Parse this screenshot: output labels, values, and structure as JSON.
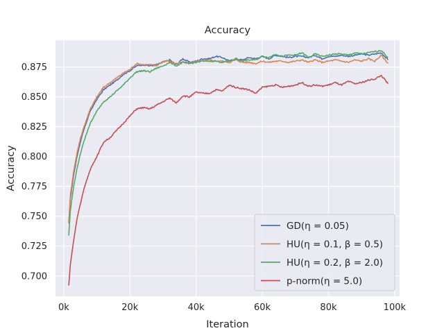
{
  "chart_data": {
    "type": "line",
    "title": "Accuracy",
    "xlabel": "Iteration",
    "ylabel": "Accuracy",
    "xlim": [
      -2500,
      101500
    ],
    "ylim": [
      0.683,
      0.8975
    ],
    "xticks": [
      0,
      20000,
      40000,
      60000,
      80000,
      100000
    ],
    "xtick_labels": [
      "0k",
      "20k",
      "40k",
      "60k",
      "80k",
      "100k"
    ],
    "yticks": [
      0.7,
      0.725,
      0.75,
      0.775,
      0.8,
      0.825,
      0.85,
      0.875
    ],
    "ytick_labels": [
      "0.700",
      "0.725",
      "0.750",
      "0.775",
      "0.800",
      "0.825",
      "0.850",
      "0.875"
    ],
    "grid": true,
    "legend_position": "lower-right",
    "background": "#eaeaf2",
    "series": [
      {
        "name": "GD(η = 0.05)",
        "legend_label": "GD(η = 0.05)",
        "color": "#4c72b0",
        "x": [
          1500,
          2000,
          3000,
          4000,
          5000,
          6000,
          7000,
          8000,
          9000,
          10000,
          12000,
          14000,
          16000,
          18000,
          20000,
          22000,
          24000,
          26000,
          28000,
          30000,
          32000,
          34000,
          36000,
          38000,
          40000,
          42000,
          44000,
          46000,
          48000,
          50000,
          52000,
          54000,
          56000,
          58000,
          60000,
          62000,
          64000,
          66000,
          68000,
          70000,
          72000,
          74000,
          76000,
          78000,
          80000,
          82000,
          84000,
          86000,
          88000,
          90000,
          92000,
          94000,
          96000,
          98000
        ],
        "y": [
          0.744,
          0.765,
          0.785,
          0.8,
          0.812,
          0.822,
          0.83,
          0.838,
          0.843,
          0.848,
          0.856,
          0.86,
          0.864,
          0.869,
          0.872,
          0.876,
          0.877,
          0.876,
          0.877,
          0.879,
          0.881,
          0.877,
          0.882,
          0.879,
          0.88,
          0.882,
          0.882,
          0.884,
          0.883,
          0.88,
          0.882,
          0.881,
          0.883,
          0.882,
          0.884,
          0.882,
          0.885,
          0.884,
          0.883,
          0.884,
          0.884,
          0.883,
          0.885,
          0.882,
          0.884,
          0.884,
          0.885,
          0.884,
          0.885,
          0.886,
          0.885,
          0.886,
          0.887,
          0.881
        ]
      },
      {
        "name": "HU(η = 0.1, β = 0.5)",
        "legend_label": "HU(η = 0.1, β = 0.5)",
        "color": "#dd8452",
        "x": [
          1500,
          2000,
          3000,
          4000,
          5000,
          6000,
          7000,
          8000,
          9000,
          10000,
          12000,
          14000,
          16000,
          18000,
          20000,
          22000,
          24000,
          26000,
          28000,
          30000,
          32000,
          34000,
          36000,
          38000,
          40000,
          42000,
          44000,
          46000,
          48000,
          50000,
          52000,
          54000,
          56000,
          58000,
          60000,
          62000,
          64000,
          66000,
          68000,
          70000,
          72000,
          74000,
          76000,
          78000,
          80000,
          82000,
          84000,
          86000,
          88000,
          90000,
          92000,
          94000,
          96000,
          98000
        ],
        "y": [
          0.745,
          0.768,
          0.788,
          0.803,
          0.815,
          0.824,
          0.832,
          0.84,
          0.845,
          0.85,
          0.858,
          0.862,
          0.866,
          0.87,
          0.873,
          0.878,
          0.877,
          0.877,
          0.876,
          0.88,
          0.88,
          0.878,
          0.879,
          0.878,
          0.88,
          0.88,
          0.881,
          0.88,
          0.88,
          0.879,
          0.881,
          0.879,
          0.879,
          0.878,
          0.88,
          0.879,
          0.88,
          0.88,
          0.879,
          0.88,
          0.881,
          0.879,
          0.881,
          0.879,
          0.88,
          0.881,
          0.88,
          0.879,
          0.881,
          0.88,
          0.882,
          0.88,
          0.885,
          0.878
        ]
      },
      {
        "name": "HU(η = 0.2, β = 2.0)",
        "legend_label": "HU(η = 0.2, β = 2.0)",
        "color": "#55a868",
        "x": [
          1500,
          2000,
          3000,
          4000,
          5000,
          6000,
          7000,
          8000,
          9000,
          10000,
          12000,
          14000,
          16000,
          18000,
          20000,
          22000,
          24000,
          26000,
          28000,
          30000,
          32000,
          34000,
          36000,
          38000,
          40000,
          42000,
          44000,
          46000,
          48000,
          50000,
          52000,
          54000,
          56000,
          58000,
          60000,
          62000,
          64000,
          66000,
          68000,
          70000,
          72000,
          74000,
          76000,
          78000,
          80000,
          82000,
          84000,
          86000,
          88000,
          90000,
          92000,
          94000,
          96000,
          98000
        ],
        "y": [
          0.734,
          0.755,
          0.775,
          0.79,
          0.802,
          0.812,
          0.82,
          0.828,
          0.833,
          0.838,
          0.846,
          0.85,
          0.855,
          0.86,
          0.866,
          0.871,
          0.872,
          0.871,
          0.874,
          0.876,
          0.879,
          0.876,
          0.879,
          0.878,
          0.879,
          0.88,
          0.88,
          0.88,
          0.879,
          0.88,
          0.882,
          0.88,
          0.881,
          0.881,
          0.884,
          0.883,
          0.886,
          0.884,
          0.885,
          0.885,
          0.887,
          0.883,
          0.886,
          0.884,
          0.885,
          0.886,
          0.886,
          0.885,
          0.887,
          0.886,
          0.887,
          0.888,
          0.889,
          0.883
        ]
      },
      {
        "name": "p-norm(η = 5.0)",
        "legend_label": "p-norm(η = 5.0)",
        "color": "#c44e52",
        "x": [
          1500,
          2000,
          3000,
          4000,
          5000,
          6000,
          7000,
          8000,
          9000,
          10000,
          12000,
          14000,
          16000,
          18000,
          20000,
          22000,
          24000,
          26000,
          28000,
          30000,
          32000,
          34000,
          36000,
          38000,
          40000,
          42000,
          44000,
          46000,
          48000,
          50000,
          52000,
          54000,
          56000,
          58000,
          60000,
          62000,
          64000,
          66000,
          68000,
          70000,
          72000,
          74000,
          76000,
          78000,
          80000,
          82000,
          84000,
          86000,
          88000,
          90000,
          92000,
          94000,
          96000,
          98000
        ],
        "y": [
          0.692,
          0.71,
          0.73,
          0.748,
          0.76,
          0.772,
          0.781,
          0.789,
          0.795,
          0.8,
          0.812,
          0.816,
          0.822,
          0.828,
          0.834,
          0.84,
          0.841,
          0.84,
          0.843,
          0.846,
          0.849,
          0.845,
          0.851,
          0.85,
          0.854,
          0.853,
          0.853,
          0.856,
          0.855,
          0.86,
          0.858,
          0.857,
          0.856,
          0.853,
          0.858,
          0.859,
          0.86,
          0.858,
          0.859,
          0.86,
          0.862,
          0.859,
          0.86,
          0.859,
          0.86,
          0.862,
          0.86,
          0.863,
          0.861,
          0.862,
          0.864,
          0.865,
          0.868,
          0.861
        ]
      }
    ]
  }
}
